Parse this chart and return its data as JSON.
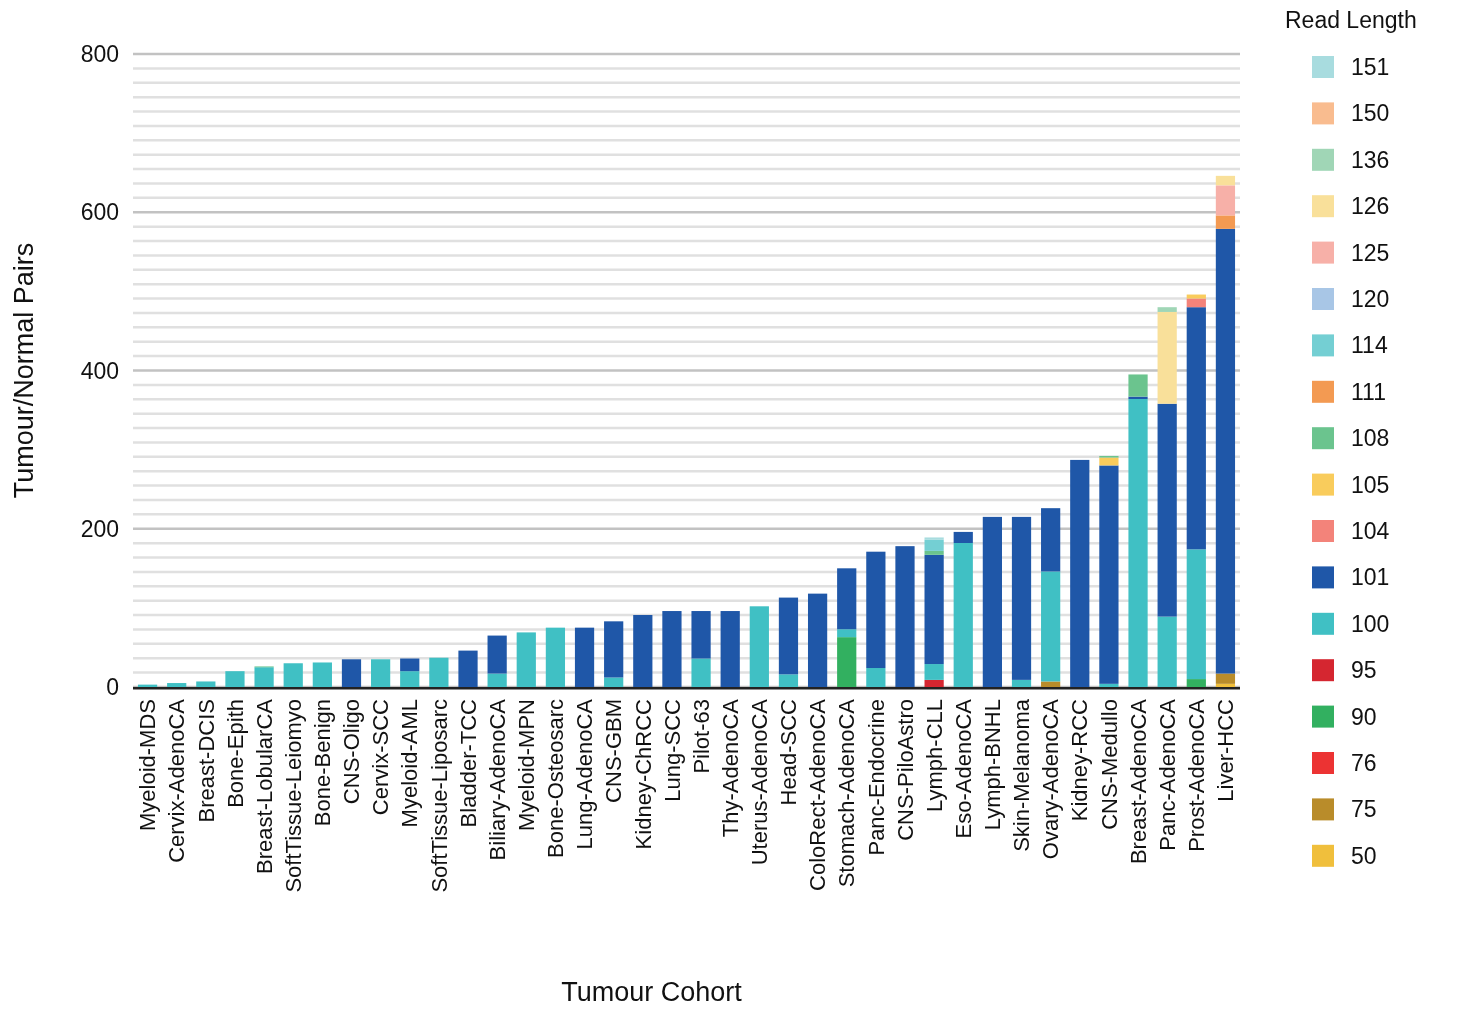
{
  "chart_data": {
    "type": "bar",
    "stacked": true,
    "xlabel": "Tumour Cohort",
    "ylabel": "Tumour/Normal Pairs",
    "legend_title": "Read Length",
    "legend": "right",
    "grid": true,
    "categories": [
      "Myeloid-MDS",
      "Cervix-AdenoCA",
      "Breast-DCIS",
      "Bone-Epith",
      "Breast-LobularCA",
      "SoftTissue-Leiomyo",
      "Bone-Benign",
      "CNS-Oligo",
      "Cervix-SCC",
      "Myeloid-AML",
      "SoftTissue-Liposarc",
      "Bladder-TCC",
      "Biliary-AdenoCA",
      "Myeloid-MPN",
      "Bone-Osteosarc",
      "Lung-AdenoCA",
      "CNS-GBM",
      "Kidney-ChRCC",
      "Lung-SCC",
      "Pilot-63",
      "Thy-AdenoCA",
      "Uterus-AdenoCA",
      "Head-SCC",
      "ColoRect-AdenoCA",
      "Stomach-AdenoCA",
      "Panc-Endocrine",
      "CNS-PiloAstro",
      "Lymph-CLL",
      "Eso-AdenoCA",
      "Lymph-BNHL",
      "Skin-Melanoma",
      "Ovary-AdenoCA",
      "Kidney-RCC",
      "CNS-Medullo",
      "Breast-AdenoCA",
      "Panc-AdenoCA",
      "Prost-AdenoCA",
      "Liver-HCC"
    ],
    "ylim": [
      0,
      800
    ],
    "yticks": [
      0,
      {
        "value": 18.18,
        "label": null
      },
      {
        "value": 36.36,
        "label": null
      },
      {
        "value": 54.55,
        "label": null
      },
      {
        "value": 72.73,
        "label": null
      },
      {
        "value": 90.91,
        "label": null
      },
      {
        "value": 109.09,
        "label": null
      },
      {
        "value": 127.27,
        "label": null
      },
      {
        "value": 145.45,
        "label": null
      },
      {
        "value": 163.64,
        "label": null
      },
      {
        "value": 181.82,
        "label": null
      },
      200,
      {
        "value": 218.18,
        "label": null
      },
      {
        "value": 236.36,
        "label": null
      },
      {
        "value": 254.55,
        "label": null
      },
      {
        "value": 272.73,
        "label": null
      },
      {
        "value": 290.91,
        "label": null
      },
      {
        "value": 309.09,
        "label": null
      },
      {
        "value": 327.27,
        "label": null
      },
      {
        "value": 345.45,
        "label": null
      },
      {
        "value": 363.64,
        "label": null
      },
      {
        "value": 381.82,
        "label": null
      },
      400,
      {
        "value": 418.18,
        "label": null
      },
      {
        "value": 436.36,
        "label": null
      },
      {
        "value": 454.55,
        "label": null
      },
      {
        "value": 472.73,
        "label": null
      },
      {
        "value": 490.91,
        "label": null
      },
      {
        "value": 509.09,
        "label": null
      },
      {
        "value": 527.27,
        "label": null
      },
      {
        "value": 545.45,
        "label": null
      },
      {
        "value": 563.64,
        "label": null
      },
      {
        "value": 581.82,
        "label": null
      },
      600,
      {
        "value": 618.18,
        "label": null
      },
      {
        "value": 636.36,
        "label": null
      },
      {
        "value": 654.55,
        "label": null
      },
      {
        "value": 672.73,
        "label": null
      },
      {
        "value": 690.91,
        "label": null
      },
      {
        "value": 709.09,
        "label": null
      },
      {
        "value": 727.27,
        "label": null
      },
      {
        "value": 745.45,
        "label": null
      },
      {
        "value": 763.64,
        "label": null
      },
      {
        "value": 781.82,
        "label": null
      },
      800
    ],
    "series": [
      {
        "name": "50",
        "color": "#f0bf3c",
        "values": [
          null,
          null,
          null,
          null,
          null,
          null,
          null,
          null,
          null,
          null,
          null,
          null,
          null,
          null,
          null,
          null,
          null,
          null,
          null,
          null,
          null,
          null,
          null,
          null,
          null,
          null,
          null,
          null,
          null,
          null,
          null,
          null,
          null,
          null,
          null,
          null,
          null,
          4
        ]
      },
      {
        "name": "75",
        "color": "#b98c2a",
        "values": [
          null,
          null,
          null,
          null,
          null,
          null,
          null,
          null,
          null,
          null,
          null,
          null,
          null,
          null,
          null,
          null,
          null,
          null,
          null,
          null,
          null,
          null,
          null,
          null,
          null,
          null,
          null,
          null,
          null,
          null,
          null,
          7,
          null,
          null,
          null,
          null,
          null,
          13
        ]
      },
      {
        "name": "76",
        "color": "#ec3333",
        "values": [
          null,
          null,
          null,
          null,
          null,
          null,
          null,
          null,
          null,
          null,
          null,
          null,
          null,
          null,
          null,
          null,
          null,
          null,
          null,
          null,
          null,
          null,
          null,
          null,
          null,
          null,
          null,
          null,
          null,
          null,
          null,
          null,
          null,
          null,
          null,
          null,
          null,
          null
        ]
      },
      {
        "name": "90",
        "color": "#32b060",
        "values": [
          null,
          null,
          null,
          null,
          null,
          null,
          null,
          null,
          null,
          null,
          null,
          null,
          null,
          null,
          null,
          null,
          null,
          null,
          null,
          null,
          null,
          null,
          null,
          null,
          63,
          null,
          null,
          null,
          null,
          null,
          null,
          null,
          null,
          null,
          null,
          null,
          10,
          null
        ]
      },
      {
        "name": "95",
        "color": "#d52630",
        "values": [
          null,
          null,
          null,
          null,
          null,
          null,
          null,
          null,
          null,
          null,
          null,
          null,
          null,
          null,
          null,
          null,
          null,
          null,
          null,
          null,
          null,
          null,
          null,
          null,
          null,
          null,
          null,
          9,
          null,
          null,
          null,
          null,
          null,
          null,
          null,
          null,
          null,
          null
        ]
      },
      {
        "name": "100",
        "color": "#40c0c4",
        "values": [
          3,
          5,
          7,
          20,
          25,
          30,
          31,
          null,
          35,
          20,
          37,
          null,
          17,
          69,
          75,
          null,
          12,
          null,
          null,
          36,
          null,
          102,
          16,
          null,
          10,
          24,
          null,
          20,
          182,
          null,
          9,
          139,
          null,
          4,
          364,
          89,
          164,
          null
        ]
      },
      {
        "name": "101",
        "color": "#1f57a8",
        "values": [
          null,
          null,
          null,
          null,
          null,
          null,
          null,
          35,
          null,
          16,
          null,
          46,
          48,
          null,
          null,
          75,
          71,
          91,
          96,
          60,
          96,
          null,
          97,
          118,
          77,
          147,
          178,
          138,
          14,
          215,
          206,
          80,
          287,
          276,
          3,
          269,
          306,
          562
        ]
      },
      {
        "name": "104",
        "color": "#f3837a",
        "values": [
          null,
          null,
          null,
          null,
          null,
          null,
          null,
          null,
          null,
          null,
          null,
          null,
          null,
          null,
          null,
          null,
          null,
          null,
          null,
          null,
          null,
          null,
          null,
          null,
          null,
          null,
          null,
          null,
          null,
          null,
          null,
          null,
          null,
          null,
          null,
          null,
          11,
          null
        ]
      },
      {
        "name": "105",
        "color": "#f9cc5c",
        "values": [
          null,
          null,
          null,
          null,
          null,
          null,
          null,
          null,
          null,
          null,
          null,
          null,
          null,
          null,
          null,
          null,
          null,
          null,
          null,
          null,
          null,
          null,
          null,
          null,
          null,
          null,
          null,
          null,
          null,
          null,
          null,
          null,
          null,
          10,
          null,
          null,
          5,
          null
        ]
      },
      {
        "name": "108",
        "color": "#6bc48e",
        "values": [
          null,
          null,
          null,
          null,
          1,
          null,
          null,
          null,
          null,
          null,
          null,
          null,
          null,
          null,
          null,
          null,
          null,
          null,
          null,
          null,
          null,
          null,
          null,
          null,
          null,
          null,
          null,
          5,
          null,
          null,
          null,
          null,
          null,
          2,
          28,
          null,
          null,
          null
        ]
      },
      {
        "name": "111",
        "color": "#f39a52",
        "values": [
          null,
          null,
          null,
          null,
          null,
          null,
          null,
          null,
          null,
          null,
          null,
          null,
          null,
          null,
          null,
          null,
          null,
          null,
          null,
          null,
          null,
          null,
          null,
          null,
          null,
          null,
          null,
          null,
          null,
          null,
          null,
          null,
          null,
          null,
          null,
          null,
          null,
          17
        ]
      },
      {
        "name": "114",
        "color": "#74cfd3",
        "values": [
          null,
          null,
          null,
          null,
          null,
          null,
          null,
          null,
          null,
          null,
          null,
          null,
          null,
          null,
          null,
          null,
          null,
          null,
          null,
          null,
          null,
          null,
          null,
          null,
          null,
          null,
          null,
          14,
          null,
          null,
          null,
          null,
          null,
          null,
          null,
          null,
          null,
          null
        ]
      },
      {
        "name": "120",
        "color": "#a8c6e6",
        "values": [
          null,
          null,
          null,
          null,
          null,
          null,
          null,
          null,
          null,
          null,
          null,
          null,
          null,
          null,
          null,
          null,
          null,
          null,
          null,
          null,
          null,
          null,
          null,
          null,
          null,
          null,
          null,
          null,
          null,
          null,
          null,
          null,
          null,
          null,
          null,
          null,
          null,
          null
        ]
      },
      {
        "name": "125",
        "color": "#f7b0a8",
        "values": [
          null,
          null,
          null,
          null,
          null,
          null,
          null,
          null,
          null,
          null,
          null,
          null,
          null,
          null,
          null,
          null,
          null,
          null,
          null,
          null,
          null,
          null,
          null,
          null,
          null,
          null,
          null,
          null,
          null,
          null,
          null,
          null,
          null,
          null,
          null,
          null,
          null,
          38
        ]
      },
      {
        "name": "126",
        "color": "#f9e09a",
        "values": [
          null,
          null,
          null,
          null,
          null,
          null,
          null,
          null,
          null,
          null,
          null,
          null,
          null,
          null,
          null,
          null,
          null,
          null,
          null,
          null,
          null,
          null,
          null,
          null,
          null,
          null,
          null,
          null,
          null,
          null,
          null,
          null,
          null,
          null,
          null,
          116,
          null,
          12
        ]
      },
      {
        "name": "136",
        "color": "#a0d6b6",
        "values": [
          null,
          null,
          null,
          null,
          null,
          null,
          null,
          null,
          null,
          null,
          null,
          null,
          null,
          null,
          null,
          null,
          null,
          null,
          null,
          null,
          null,
          null,
          null,
          null,
          null,
          null,
          null,
          null,
          null,
          null,
          null,
          null,
          null,
          null,
          null,
          6,
          null,
          null
        ]
      },
      {
        "name": "150",
        "color": "#f9bc8f",
        "values": [
          null,
          null,
          null,
          null,
          null,
          null,
          null,
          null,
          null,
          null,
          null,
          null,
          null,
          null,
          null,
          null,
          null,
          null,
          null,
          null,
          null,
          null,
          null,
          null,
          null,
          null,
          null,
          null,
          null,
          null,
          null,
          null,
          null,
          null,
          null,
          null,
          null,
          null
        ]
      },
      {
        "name": "151",
        "color": "#a8dcdf",
        "values": [
          null,
          null,
          null,
          null,
          null,
          null,
          null,
          null,
          null,
          null,
          null,
          null,
          null,
          null,
          null,
          null,
          null,
          null,
          null,
          null,
          null,
          null,
          null,
          null,
          null,
          null,
          null,
          3,
          null,
          null,
          null,
          null,
          null,
          null,
          null,
          null,
          null,
          null
        ]
      }
    ]
  }
}
